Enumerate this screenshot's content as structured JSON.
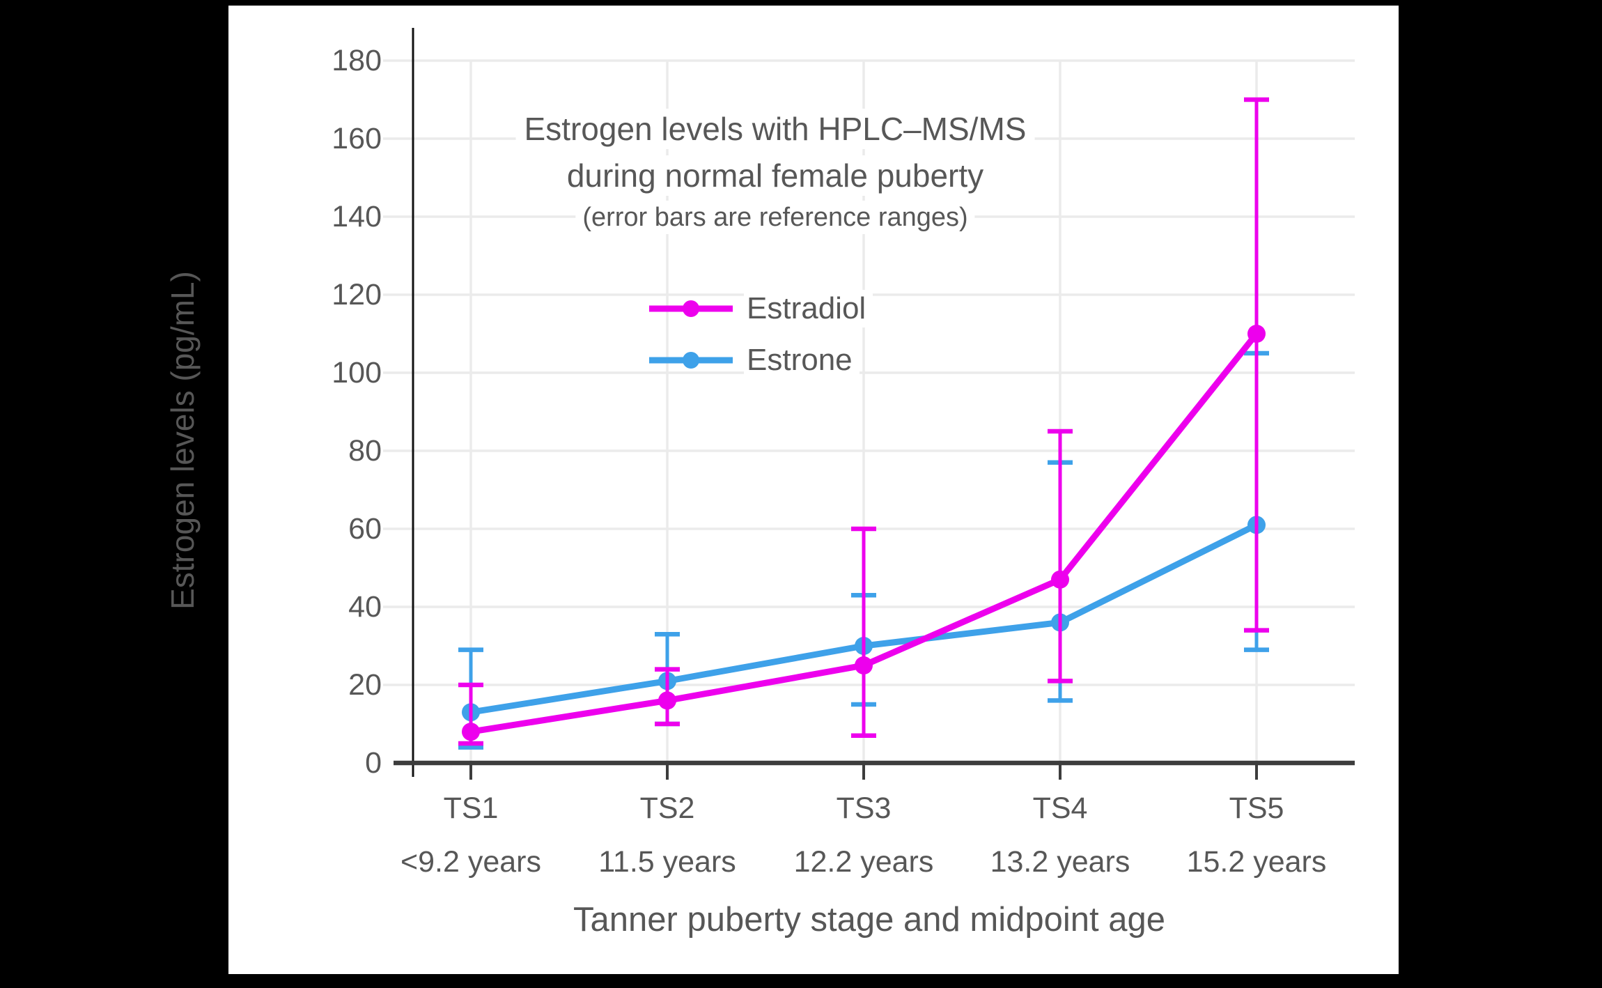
{
  "chart_data": {
    "type": "line",
    "title_line1": "Estrogen levels with HPLC–MS/MS",
    "title_line2": "during normal female puberty",
    "subtitle": "(error bars are reference ranges)",
    "xlabel": "Tanner puberty stage and midpoint age",
    "ylabel": "Estrogen levels (pg/mL)",
    "ylim": [
      0,
      185
    ],
    "grid": true,
    "legend_position": "upper-center",
    "y_ticks": [
      0,
      20,
      40,
      60,
      80,
      100,
      120,
      140,
      160,
      180
    ],
    "categories": [
      "TS1",
      "TS2",
      "TS3",
      "TS4",
      "TS5"
    ],
    "category_ages": [
      "<9.2 years",
      "11.5 years",
      "12.2 years",
      "13.2 years",
      "15.2 years"
    ],
    "series": [
      {
        "name": "Estradiol",
        "color": "#ED00ED",
        "values": [
          8,
          16,
          25,
          47,
          110
        ],
        "range_low": [
          5,
          10,
          7,
          21,
          34
        ],
        "range_high": [
          20,
          24,
          60,
          85,
          170
        ]
      },
      {
        "name": "Estrone",
        "color": "#3EA1E9",
        "values": [
          13,
          21,
          30,
          36,
          61
        ],
        "range_low": [
          4,
          10,
          15,
          16,
          29
        ],
        "range_high": [
          29,
          33,
          43,
          77,
          105
        ]
      }
    ],
    "colors": {
      "estradiol": "#ED00ED",
      "estrone": "#3EA1E9",
      "text": "#575757",
      "gridline": "#ebebeb",
      "x_axis": "#3d3d3d",
      "y_axis": "#111111",
      "panel_background": "#ffffff",
      "page_background": "#000000"
    }
  }
}
